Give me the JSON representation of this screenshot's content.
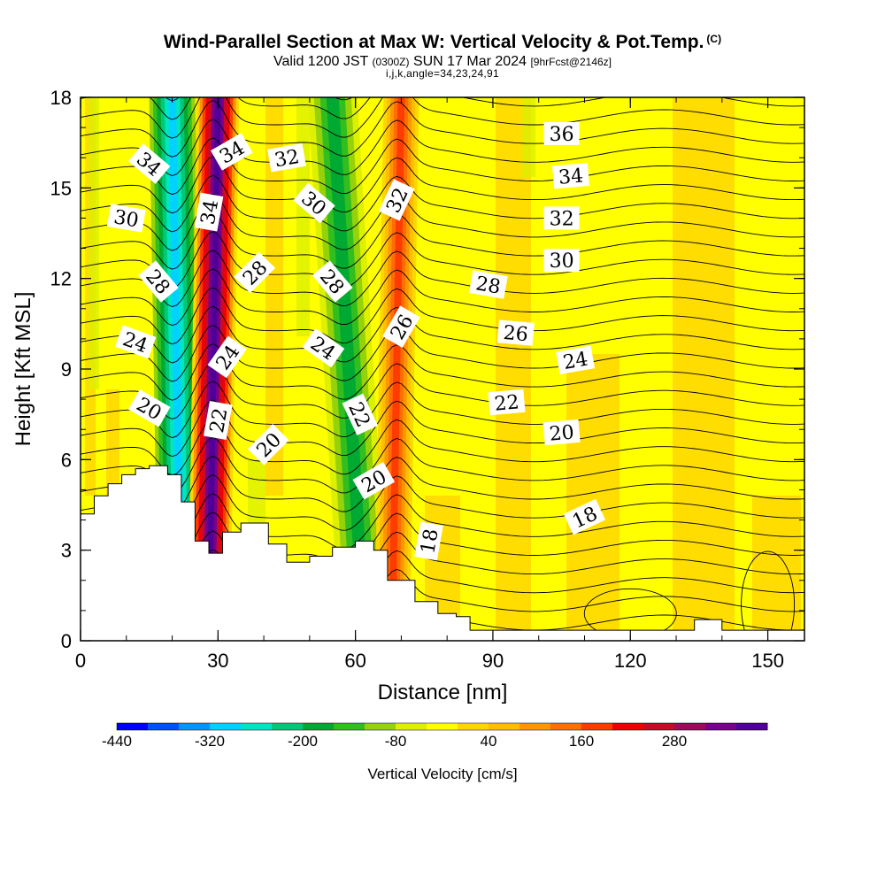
{
  "header": {
    "title": "Wind-Parallel Section at Max W: Vertical Velocity & Pot.Temp.",
    "title_mark": "(C)",
    "valid_prefix": "Valid 1200 JST",
    "valid_utc": "(0300Z)",
    "valid_date": "SUN 17 Mar 2024",
    "forecast": "[9hrFcst@2146z]",
    "indices": "i,j,k,angle=34,23,24,91"
  },
  "chart_data": {
    "type": "contour",
    "xlabel": "Distance [nm]",
    "ylabel": "Height [Kft MSL]",
    "xlim": [
      0,
      158
    ],
    "ylim": [
      0,
      18
    ],
    "x_ticks": [
      "0",
      "30",
      "60",
      "90",
      "120",
      "150"
    ],
    "y_ticks": [
      "0",
      "3",
      "6",
      "9",
      "12",
      "15",
      "18"
    ],
    "colorbar": {
      "title": "Vertical Velocity [cm/s]",
      "labels": [
        "-440",
        "-320",
        "-200",
        "-80",
        "40",
        "160",
        "280"
      ],
      "colors": [
        "#0000ff",
        "#0050ff",
        "#0096ff",
        "#00d2ff",
        "#00e6be",
        "#00c878",
        "#00aa32",
        "#32be1e",
        "#96d20a",
        "#dcf000",
        "#ffff00",
        "#ffd700",
        "#ffbe00",
        "#ff9600",
        "#ff6e00",
        "#ff3c00",
        "#f00000",
        "#c80a28",
        "#a00a5a",
        "#78008c",
        "#500096"
      ]
    },
    "velocity_bands": [
      {
        "name": "strong-updraft-1",
        "x_bottom": 26,
        "x_top": 30,
        "w_cm_s": 320
      },
      {
        "name": "strong-downdraft-1",
        "x_bottom": 22,
        "x_top": 20,
        "w_cm_s": -240
      },
      {
        "name": "updraft-2",
        "x_bottom": 67,
        "x_top": 70,
        "w_cm_s": 160
      },
      {
        "name": "downdraft-2",
        "x_bottom": 62,
        "x_top": 54,
        "w_cm_s": -120
      }
    ],
    "theta_contour_labels": [
      {
        "text": "34",
        "x": 15,
        "y": 15.8,
        "rot": 40
      },
      {
        "text": "34",
        "x": 33,
        "y": 16.2,
        "rot": -30
      },
      {
        "text": "34",
        "x": 28,
        "y": 14.2,
        "rot": -80
      },
      {
        "text": "32",
        "x": 45,
        "y": 16.0,
        "rot": -10
      },
      {
        "text": "30",
        "x": 10,
        "y": 14.0,
        "rot": 10
      },
      {
        "text": "30",
        "x": 51,
        "y": 14.5,
        "rot": 40
      },
      {
        "text": "32",
        "x": 69,
        "y": 14.6,
        "rot": -65
      },
      {
        "text": "36",
        "x": 105,
        "y": 16.8,
        "rot": 0
      },
      {
        "text": "34",
        "x": 107,
        "y": 15.4,
        "rot": -5
      },
      {
        "text": "32",
        "x": 105,
        "y": 14.0,
        "rot": 0
      },
      {
        "text": "30",
        "x": 105,
        "y": 12.6,
        "rot": 0
      },
      {
        "text": "28",
        "x": 17,
        "y": 11.9,
        "rot": 50
      },
      {
        "text": "28",
        "x": 38,
        "y": 12.2,
        "rot": -45
      },
      {
        "text": "28",
        "x": 55,
        "y": 11.9,
        "rot": 50
      },
      {
        "text": "28",
        "x": 89,
        "y": 11.8,
        "rot": 10
      },
      {
        "text": "26",
        "x": 70,
        "y": 10.4,
        "rot": -60
      },
      {
        "text": "26",
        "x": 95,
        "y": 10.2,
        "rot": 5
      },
      {
        "text": "24",
        "x": 12,
        "y": 9.9,
        "rot": 20
      },
      {
        "text": "24",
        "x": 32,
        "y": 9.4,
        "rot": -55
      },
      {
        "text": "24",
        "x": 53,
        "y": 9.7,
        "rot": 35
      },
      {
        "text": "24",
        "x": 108,
        "y": 9.3,
        "rot": -10
      },
      {
        "text": "22",
        "x": 61,
        "y": 7.5,
        "rot": 65
      },
      {
        "text": "22",
        "x": 93,
        "y": 7.9,
        "rot": -5
      },
      {
        "text": "22",
        "x": 30,
        "y": 7.3,
        "rot": -80
      },
      {
        "text": "20",
        "x": 15,
        "y": 7.7,
        "rot": 30
      },
      {
        "text": "20",
        "x": 41,
        "y": 6.5,
        "rot": -45
      },
      {
        "text": "20",
        "x": 64,
        "y": 5.3,
        "rot": -30
      },
      {
        "text": "20",
        "x": 105,
        "y": 6.9,
        "rot": -5
      },
      {
        "text": "18",
        "x": 76,
        "y": 3.3,
        "rot": -80
      },
      {
        "text": "18",
        "x": 110,
        "y": 4.1,
        "rot": -25
      }
    ],
    "terrain_height_kft": [
      [
        0,
        4.2
      ],
      [
        3,
        4.8
      ],
      [
        6,
        5.2
      ],
      [
        9,
        5.5
      ],
      [
        12,
        5.7
      ],
      [
        15,
        5.8
      ],
      [
        19,
        5.5
      ],
      [
        22,
        4.6
      ],
      [
        25,
        3.3
      ],
      [
        28,
        2.9
      ],
      [
        31,
        3.6
      ],
      [
        35,
        3.9
      ],
      [
        41,
        3.2
      ],
      [
        45,
        2.6
      ],
      [
        50,
        2.8
      ],
      [
        55,
        3.1
      ],
      [
        60,
        3.3
      ],
      [
        64,
        3.0
      ],
      [
        67,
        2.0
      ],
      [
        73,
        1.3
      ],
      [
        78,
        0.9
      ],
      [
        82,
        0.8
      ],
      [
        85,
        0.35
      ],
      [
        133,
        0.35
      ],
      [
        134,
        0.7
      ],
      [
        139,
        0.7
      ],
      [
        140,
        0.35
      ],
      [
        158,
        0.35
      ]
    ]
  }
}
